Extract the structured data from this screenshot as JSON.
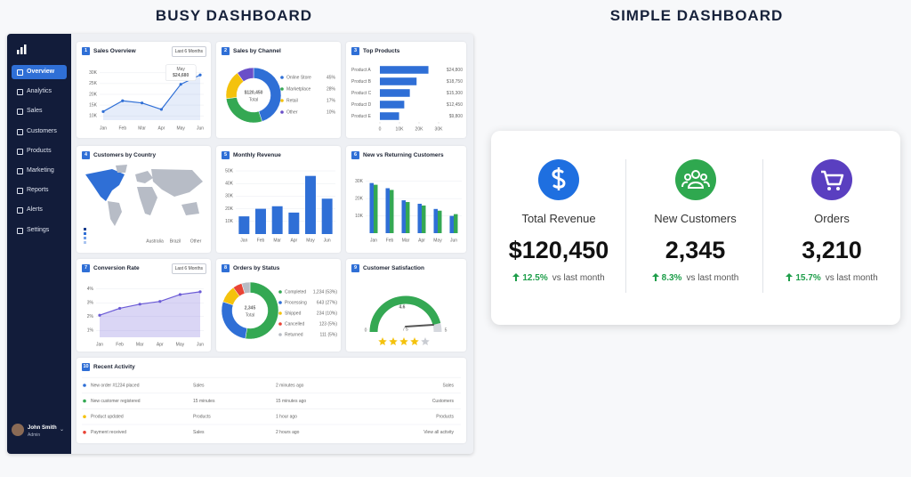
{
  "headings": {
    "busy": "BUSY DASHBOARD",
    "simple": "SIMPLE DASHBOARD"
  },
  "sidebar": {
    "items": [
      "Overview",
      "Analytics",
      "Sales",
      "Customers",
      "Products",
      "Marketing",
      "Reports",
      "Alerts",
      "Settings"
    ],
    "user": {
      "name": "John Smith",
      "role": "Admin"
    }
  },
  "sales_overview": {
    "number": "1",
    "title": "Sales Overview",
    "filter": "Last 6 Months",
    "tooltip": {
      "label": "May",
      "value": "$24,680"
    },
    "chart_data": {
      "type": "line",
      "categories": [
        "Jan",
        "Feb",
        "Mar",
        "Apr",
        "May",
        "Jun"
      ],
      "values": [
        12000,
        17000,
        16000,
        13000,
        24680,
        29000
      ],
      "color": "#2f6fd6",
      "ylim": [
        8000,
        32000
      ],
      "yticks": [
        {
          "value": 10000,
          "label": "10K"
        },
        {
          "value": 15000,
          "label": "15K"
        },
        {
          "value": 20000,
          "label": "20K"
        },
        {
          "value": 25000,
          "label": "25K"
        },
        {
          "value": 30000,
          "label": "30K"
        }
      ]
    }
  },
  "sales_by_channel": {
    "number": "2",
    "title": "Sales by Channel",
    "total": "$120,450",
    "total_label": "Total",
    "chart_data": {
      "type": "pie",
      "categories": [
        "Online Store",
        "Marketplace",
        "Retail",
        "Other"
      ],
      "values": [
        45,
        28,
        17,
        10
      ],
      "value_labels": [
        "45%",
        "28%",
        "17%",
        "10%"
      ],
      "colors": [
        "#2f6fd6",
        "#34a853",
        "#f4c20d",
        "#6a4fc8"
      ]
    }
  },
  "top_products": {
    "number": "3",
    "title": "Top Products",
    "chart_data": {
      "type": "hbar",
      "categories": [
        "Product A",
        "Product B",
        "Product C",
        "Product D",
        "Product E"
      ],
      "values": [
        24800,
        18750,
        15300,
        12450,
        9800
      ],
      "value_labels": [
        "$24,800",
        "$18,750",
        "$15,300",
        "$12,450",
        "$9,800"
      ],
      "color": "#2f6fd6",
      "xlim": [
        0,
        30000
      ],
      "xticks": [
        0,
        {
          "value": 10000,
          "label": "10K"
        },
        {
          "value": 20000,
          "label": "20K"
        },
        {
          "value": 30000,
          "label": "30K"
        }
      ]
    }
  },
  "customers_by_country": {
    "number": "4",
    "title": "Customers by Country",
    "labels": [
      "Australia",
      "Brazil",
      "Other"
    ]
  },
  "monthly_revenue": {
    "number": "5",
    "title": "Monthly Revenue",
    "chart_data": {
      "type": "bar",
      "categories": [
        "Jan",
        "Feb",
        "Mar",
        "Apr",
        "May",
        "Jun"
      ],
      "values": [
        14000,
        20000,
        22000,
        17000,
        46000,
        28000
      ],
      "color": "#2f6fd6",
      "ylim": [
        0,
        50000
      ],
      "yticks": [
        {
          "value": 10000,
          "label": "10K"
        },
        {
          "value": 20000,
          "label": "20K"
        },
        {
          "value": 30000,
          "label": "30K"
        },
        {
          "value": 40000,
          "label": "40K"
        },
        {
          "value": 50000,
          "label": "50K"
        }
      ]
    }
  },
  "new_vs_returning": {
    "number": "6",
    "title": "New vs Returning Customers",
    "chart_data": {
      "type": "grouped_bar",
      "categories": [
        "Jan",
        "Feb",
        "Mar",
        "Apr",
        "May",
        "Jun"
      ],
      "series": [
        {
          "color": "#2f6fd6",
          "values": [
            29000,
            26000,
            19000,
            17000,
            14000,
            10000
          ]
        },
        {
          "color": "#34a853",
          "values": [
            28000,
            25000,
            18000,
            16000,
            13000,
            11000
          ]
        }
      ],
      "ylim": [
        0,
        35000
      ],
      "yticks": [
        {
          "value": 10000,
          "label": "10K"
        },
        {
          "value": 20000,
          "label": "20K"
        },
        {
          "value": 30000,
          "label": "30K"
        }
      ]
    }
  },
  "conversion_rate": {
    "number": "7",
    "title": "Conversion Rate",
    "filter": "Last 6 Months",
    "chart_data": {
      "type": "area",
      "categories": [
        "Jan",
        "Feb",
        "Mar",
        "Apr",
        "May",
        "Jun"
      ],
      "values": [
        2.1,
        2.6,
        2.9,
        3.1,
        3.6,
        3.8
      ],
      "color": "#6b5bd6",
      "ylim": [
        0.5,
        4.5
      ],
      "yticks": [
        {
          "value": 1,
          "label": "1%"
        },
        {
          "value": 2,
          "label": "2%"
        },
        {
          "value": 3,
          "label": "3%"
        },
        {
          "value": 4,
          "label": "4%"
        }
      ]
    }
  },
  "orders_by_status": {
    "number": "8",
    "title": "Orders by Status",
    "total": "2,345",
    "total_label": "Total",
    "chart_data": {
      "type": "pie",
      "categories": [
        "Completed",
        "Processing",
        "Shipped",
        "Cancelled",
        "Returned"
      ],
      "values": [
        1234,
        643,
        234,
        123,
        111
      ],
      "value_labels": [
        "1,234 (53%)",
        "643 (27%)",
        "234 (10%)",
        "123 (5%)",
        "111 (5%)"
      ],
      "colors": [
        "#34a853",
        "#2f6fd6",
        "#f4c20d",
        "#e94335",
        "#b8bcc4"
      ]
    }
  },
  "customer_satisfaction": {
    "number": "9",
    "title": "Customer Satisfaction",
    "chart_data": {
      "type": "gauge",
      "value": 4.6,
      "label": "/ 5",
      "ylim": [
        0,
        5
      ],
      "stars": 4,
      "color": "#34a853"
    }
  },
  "recent_activity": {
    "number": "10",
    "title": "Recent Activity",
    "rows": [
      [
        "New order #1234 placed",
        "Sales",
        "2 minutes ago",
        "Sales"
      ],
      [
        "New customer registered",
        "15 minutes",
        "15 minutes ago",
        "Customers"
      ],
      [
        "Product updated",
        "Products",
        "1 hour ago",
        "Products"
      ],
      [
        "Payment received",
        "Sales",
        "2 hours ago"
      ]
    ],
    "dot_colors": [
      "#2f6fd6",
      "#34a853",
      "#f4c20d",
      "#e94335"
    ],
    "link": "View all activity"
  },
  "simple": {
    "metrics": [
      {
        "label": "Total Revenue",
        "value": "$120,450",
        "change": "12.5%",
        "comparison": "vs last month",
        "color": "#1e6fe0"
      },
      {
        "label": "New Customers",
        "value": "2,345",
        "change": "8.3%",
        "comparison": "vs last month",
        "color": "#2fa84f"
      },
      {
        "label": "Orders",
        "value": "3,210",
        "change": "15.7%",
        "comparison": "vs last month",
        "color": "#5a3fc0"
      }
    ]
  }
}
